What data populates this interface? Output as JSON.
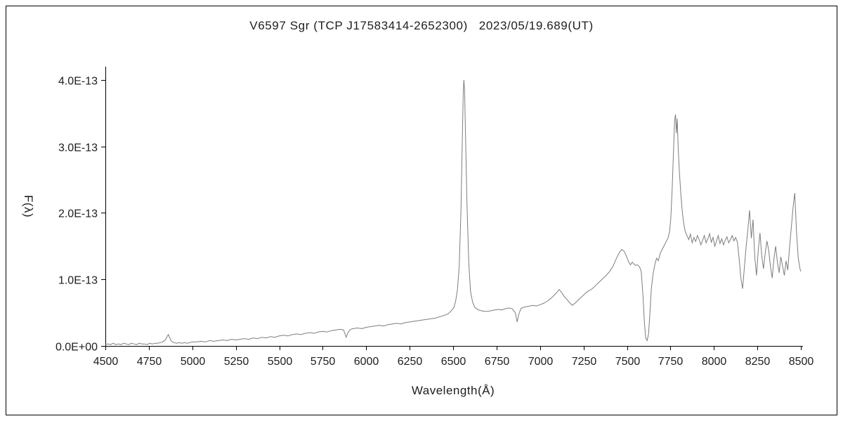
{
  "chart_data": {
    "type": "line",
    "title": "V6597 Sgr (TCP J17583414-2652300)   2023/05/19.689(UT)",
    "xlabel": "Wavelength(Å)",
    "ylabel": "F(λ)",
    "xlim": [
      4500,
      8500
    ],
    "ylim": [
      0,
      4.2
    ],
    "y_value_unit": "1e-13",
    "grid": false,
    "legend": false,
    "line_color": "#7d7d7d",
    "x_ticks": [
      4500,
      4750,
      5000,
      5250,
      5500,
      5750,
      6000,
      6250,
      6500,
      6750,
      7000,
      7250,
      7500,
      7750,
      8000,
      8250,
      8500
    ],
    "y_ticks": [
      {
        "value": 0,
        "label": "0.0E+00"
      },
      {
        "value": 1,
        "label": "1.0E-13"
      },
      {
        "value": 2,
        "label": "2.0E-13"
      },
      {
        "value": 3,
        "label": "3.0E-13"
      },
      {
        "value": 4,
        "label": "4.0E-13"
      }
    ],
    "points": [
      [
        4500,
        0.02
      ],
      [
        4515,
        0.03
      ],
      [
        4530,
        0.02
      ],
      [
        4545,
        0.04
      ],
      [
        4560,
        0.02
      ],
      [
        4575,
        0.03
      ],
      [
        4590,
        0.02
      ],
      [
        4605,
        0.04
      ],
      [
        4620,
        0.03
      ],
      [
        4635,
        0.02
      ],
      [
        4650,
        0.04
      ],
      [
        4665,
        0.03
      ],
      [
        4680,
        0.02
      ],
      [
        4695,
        0.04
      ],
      [
        4710,
        0.03
      ],
      [
        4725,
        0.03
      ],
      [
        4740,
        0.02
      ],
      [
        4755,
        0.04
      ],
      [
        4770,
        0.03
      ],
      [
        4785,
        0.04
      ],
      [
        4800,
        0.04
      ],
      [
        4815,
        0.05
      ],
      [
        4830,
        0.06
      ],
      [
        4845,
        0.09
      ],
      [
        4855,
        0.14
      ],
      [
        4862,
        0.17
      ],
      [
        4870,
        0.12
      ],
      [
        4880,
        0.07
      ],
      [
        4895,
        0.05
      ],
      [
        4910,
        0.04
      ],
      [
        4925,
        0.05
      ],
      [
        4940,
        0.04
      ],
      [
        4955,
        0.05
      ],
      [
        4970,
        0.04
      ],
      [
        4985,
        0.05
      ],
      [
        5000,
        0.06
      ],
      [
        5025,
        0.06
      ],
      [
        5050,
        0.07
      ],
      [
        5075,
        0.06
      ],
      [
        5100,
        0.08
      ],
      [
        5125,
        0.07
      ],
      [
        5150,
        0.08
      ],
      [
        5175,
        0.09
      ],
      [
        5200,
        0.08
      ],
      [
        5225,
        0.1
      ],
      [
        5250,
        0.09
      ],
      [
        5275,
        0.1
      ],
      [
        5300,
        0.11
      ],
      [
        5325,
        0.1
      ],
      [
        5350,
        0.12
      ],
      [
        5375,
        0.11
      ],
      [
        5400,
        0.13
      ],
      [
        5425,
        0.12
      ],
      [
        5450,
        0.14
      ],
      [
        5475,
        0.13
      ],
      [
        5500,
        0.15
      ],
      [
        5525,
        0.16
      ],
      [
        5550,
        0.15
      ],
      [
        5575,
        0.17
      ],
      [
        5600,
        0.18
      ],
      [
        5625,
        0.17
      ],
      [
        5650,
        0.19
      ],
      [
        5675,
        0.2
      ],
      [
        5700,
        0.19
      ],
      [
        5725,
        0.21
      ],
      [
        5750,
        0.22
      ],
      [
        5775,
        0.21
      ],
      [
        5800,
        0.23
      ],
      [
        5825,
        0.24
      ],
      [
        5850,
        0.25
      ],
      [
        5870,
        0.24
      ],
      [
        5885,
        0.13
      ],
      [
        5895,
        0.2
      ],
      [
        5910,
        0.25
      ],
      [
        5925,
        0.26
      ],
      [
        5950,
        0.27
      ],
      [
        5975,
        0.26
      ],
      [
        6000,
        0.28
      ],
      [
        6025,
        0.29
      ],
      [
        6050,
        0.3
      ],
      [
        6075,
        0.31
      ],
      [
        6100,
        0.3
      ],
      [
        6125,
        0.32
      ],
      [
        6150,
        0.33
      ],
      [
        6175,
        0.34
      ],
      [
        6200,
        0.33
      ],
      [
        6225,
        0.35
      ],
      [
        6250,
        0.36
      ],
      [
        6275,
        0.37
      ],
      [
        6300,
        0.38
      ],
      [
        6325,
        0.39
      ],
      [
        6350,
        0.4
      ],
      [
        6375,
        0.41
      ],
      [
        6400,
        0.42
      ],
      [
        6425,
        0.44
      ],
      [
        6450,
        0.46
      ],
      [
        6470,
        0.48
      ],
      [
        6490,
        0.53
      ],
      [
        6505,
        0.58
      ],
      [
        6515,
        0.68
      ],
      [
        6525,
        0.85
      ],
      [
        6535,
        1.2
      ],
      [
        6545,
        2.0
      ],
      [
        6552,
        3.0
      ],
      [
        6558,
        3.8
      ],
      [
        6562,
        4.0
      ],
      [
        6566,
        3.85
      ],
      [
        6572,
        3.1
      ],
      [
        6580,
        2.1
      ],
      [
        6590,
        1.25
      ],
      [
        6600,
        0.82
      ],
      [
        6612,
        0.66
      ],
      [
        6625,
        0.58
      ],
      [
        6640,
        0.55
      ],
      [
        6660,
        0.53
      ],
      [
        6680,
        0.52
      ],
      [
        6700,
        0.52
      ],
      [
        6720,
        0.53
      ],
      [
        6740,
        0.54
      ],
      [
        6760,
        0.55
      ],
      [
        6780,
        0.54
      ],
      [
        6800,
        0.56
      ],
      [
        6820,
        0.57
      ],
      [
        6840,
        0.56
      ],
      [
        6858,
        0.5
      ],
      [
        6868,
        0.36
      ],
      [
        6878,
        0.48
      ],
      [
        6890,
        0.56
      ],
      [
        6905,
        0.58
      ],
      [
        6920,
        0.59
      ],
      [
        6940,
        0.6
      ],
      [
        6960,
        0.61
      ],
      [
        6980,
        0.6
      ],
      [
        7000,
        0.62
      ],
      [
        7020,
        0.64
      ],
      [
        7040,
        0.67
      ],
      [
        7060,
        0.71
      ],
      [
        7080,
        0.76
      ],
      [
        7095,
        0.8
      ],
      [
        7110,
        0.85
      ],
      [
        7125,
        0.8
      ],
      [
        7140,
        0.74
      ],
      [
        7155,
        0.7
      ],
      [
        7170,
        0.65
      ],
      [
        7185,
        0.61
      ],
      [
        7200,
        0.64
      ],
      [
        7220,
        0.69
      ],
      [
        7240,
        0.74
      ],
      [
        7260,
        0.79
      ],
      [
        7280,
        0.83
      ],
      [
        7300,
        0.86
      ],
      [
        7320,
        0.91
      ],
      [
        7340,
        0.96
      ],
      [
        7360,
        1.01
      ],
      [
        7380,
        1.06
      ],
      [
        7400,
        1.12
      ],
      [
        7420,
        1.2
      ],
      [
        7440,
        1.32
      ],
      [
        7455,
        1.4
      ],
      [
        7470,
        1.45
      ],
      [
        7485,
        1.42
      ],
      [
        7500,
        1.33
      ],
      [
        7510,
        1.26
      ],
      [
        7520,
        1.22
      ],
      [
        7530,
        1.26
      ],
      [
        7540,
        1.23
      ],
      [
        7550,
        1.21
      ],
      [
        7560,
        1.22
      ],
      [
        7572,
        1.19
      ],
      [
        7582,
        1.12
      ],
      [
        7592,
        0.75
      ],
      [
        7600,
        0.35
      ],
      [
        7608,
        0.12
      ],
      [
        7616,
        0.08
      ],
      [
        7624,
        0.18
      ],
      [
        7632,
        0.5
      ],
      [
        7640,
        0.85
      ],
      [
        7650,
        1.08
      ],
      [
        7660,
        1.22
      ],
      [
        7670,
        1.32
      ],
      [
        7680,
        1.28
      ],
      [
        7690,
        1.38
      ],
      [
        7700,
        1.44
      ],
      [
        7712,
        1.5
      ],
      [
        7724,
        1.56
      ],
      [
        7736,
        1.62
      ],
      [
        7745,
        1.72
      ],
      [
        7752,
        1.92
      ],
      [
        7760,
        2.35
      ],
      [
        7768,
        2.95
      ],
      [
        7774,
        3.4
      ],
      [
        7779,
        3.48
      ],
      [
        7784,
        3.2
      ],
      [
        7789,
        3.42
      ],
      [
        7795,
        2.95
      ],
      [
        7802,
        2.6
      ],
      [
        7810,
        2.28
      ],
      [
        7818,
        2.02
      ],
      [
        7826,
        1.85
      ],
      [
        7835,
        1.72
      ],
      [
        7845,
        1.66
      ],
      [
        7855,
        1.6
      ],
      [
        7865,
        1.68
      ],
      [
        7875,
        1.55
      ],
      [
        7885,
        1.63
      ],
      [
        7895,
        1.57
      ],
      [
        7905,
        1.66
      ],
      [
        7915,
        1.6
      ],
      [
        7925,
        1.52
      ],
      [
        7935,
        1.59
      ],
      [
        7945,
        1.66
      ],
      [
        7955,
        1.55
      ],
      [
        7965,
        1.61
      ],
      [
        7975,
        1.69
      ],
      [
        7985,
        1.56
      ],
      [
        7995,
        1.63
      ],
      [
        8005,
        1.5
      ],
      [
        8015,
        1.58
      ],
      [
        8025,
        1.66
      ],
      [
        8035,
        1.54
      ],
      [
        8045,
        1.61
      ],
      [
        8055,
        1.52
      ],
      [
        8065,
        1.59
      ],
      [
        8075,
        1.64
      ],
      [
        8085,
        1.55
      ],
      [
        8095,
        1.6
      ],
      [
        8105,
        1.66
      ],
      [
        8115,
        1.58
      ],
      [
        8125,
        1.63
      ],
      [
        8135,
        1.56
      ],
      [
        8145,
        1.32
      ],
      [
        8155,
        1.02
      ],
      [
        8165,
        0.86
      ],
      [
        8175,
        1.18
      ],
      [
        8185,
        1.48
      ],
      [
        8195,
        1.74
      ],
      [
        8205,
        2.04
      ],
      [
        8215,
        1.62
      ],
      [
        8225,
        1.9
      ],
      [
        8235,
        1.34
      ],
      [
        8245,
        1.06
      ],
      [
        8255,
        1.44
      ],
      [
        8265,
        1.7
      ],
      [
        8275,
        1.36
      ],
      [
        8285,
        1.16
      ],
      [
        8295,
        1.4
      ],
      [
        8305,
        1.58
      ],
      [
        8315,
        1.44
      ],
      [
        8325,
        1.2
      ],
      [
        8335,
        1.02
      ],
      [
        8345,
        1.3
      ],
      [
        8355,
        1.5
      ],
      [
        8365,
        1.26
      ],
      [
        8375,
        1.1
      ],
      [
        8385,
        1.34
      ],
      [
        8395,
        1.2
      ],
      [
        8405,
        1.06
      ],
      [
        8415,
        1.28
      ],
      [
        8425,
        1.14
      ],
      [
        8435,
        1.48
      ],
      [
        8445,
        1.78
      ],
      [
        8455,
        2.08
      ],
      [
        8465,
        2.3
      ],
      [
        8475,
        1.72
      ],
      [
        8485,
        1.32
      ],
      [
        8495,
        1.16
      ],
      [
        8500,
        1.12
      ]
    ]
  }
}
